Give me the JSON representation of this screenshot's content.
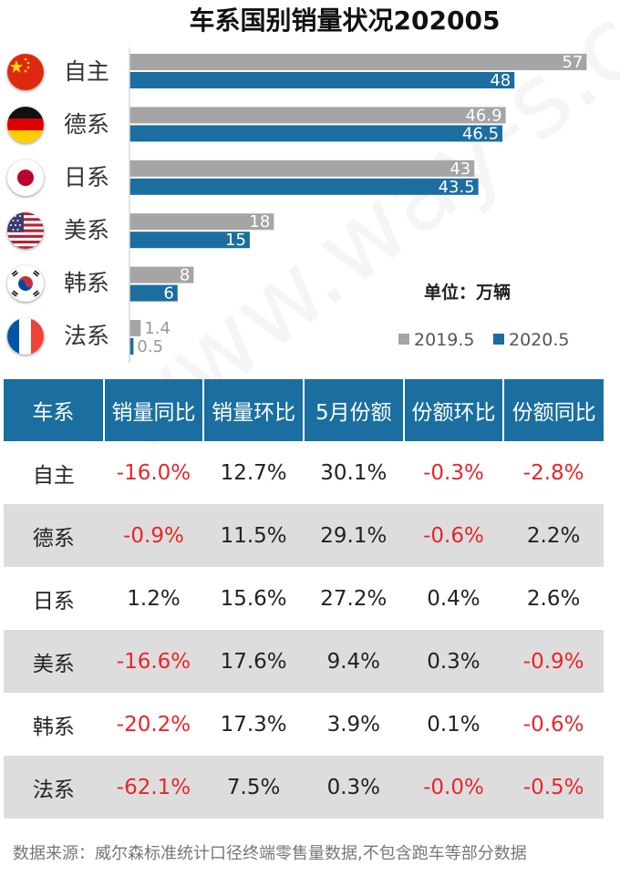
{
  "colors": {
    "bar_2019": "#a5a5a5",
    "bar_2020": "#1c6ea0",
    "table_header": "#1a6fa0",
    "negative": "#e8252a",
    "alt_row": "#dddddd"
  },
  "chart_data": {
    "type": "bar",
    "orientation": "horizontal",
    "title": "车系国别销量状况202005",
    "unit_label": "单位：万辆",
    "categories": [
      "自主",
      "德系",
      "日系",
      "美系",
      "韩系",
      "法系"
    ],
    "flags": [
      "china-flag-icon",
      "germany-flag-icon",
      "japan-flag-icon",
      "usa-flag-icon",
      "korea-flag-icon",
      "france-flag-icon"
    ],
    "series": [
      {
        "name": "2019.5",
        "values": [
          57,
          46.9,
          43,
          18,
          8,
          1.4
        ]
      },
      {
        "name": "2020.5",
        "values": [
          48,
          46.5,
          43.5,
          15,
          6,
          0.5
        ]
      }
    ],
    "xlim": [
      0,
      59
    ],
    "legend_position": "bottom-right"
  },
  "table": {
    "headers": [
      "车系",
      "销量同比",
      "销量环比",
      "5月份额",
      "份额环比",
      "份额同比"
    ],
    "rows": [
      [
        "自主",
        "-16.0%",
        "12.7%",
        "30.1%",
        "-0.3%",
        "-2.8%"
      ],
      [
        "德系",
        "-0.9%",
        "11.5%",
        "29.1%",
        "-0.6%",
        "2.2%"
      ],
      [
        "日系",
        "1.2%",
        "15.6%",
        "27.2%",
        "0.4%",
        "2.6%"
      ],
      [
        "美系",
        "-16.6%",
        "17.6%",
        "9.4%",
        "0.3%",
        "-0.9%"
      ],
      [
        "韩系",
        "-20.2%",
        "17.3%",
        "3.9%",
        "0.1%",
        "-0.6%"
      ],
      [
        "法系",
        "-62.1%",
        "7.5%",
        "0.3%",
        "-0.0%",
        "-0.5%"
      ]
    ]
  },
  "source_note": "数据来源：威尔森标准统计口径终端零售量数据,不包含跑车等部分数据",
  "watermark": "www.way-s.cn"
}
